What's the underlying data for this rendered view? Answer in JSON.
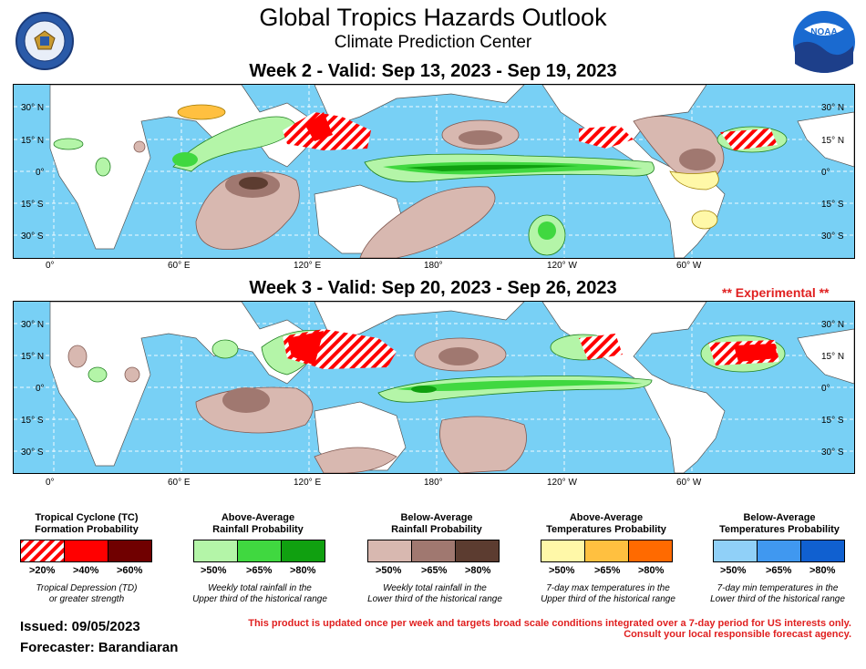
{
  "header": {
    "title": "Global Tropics Hazards Outlook",
    "subtitle": "Climate Prediction Center"
  },
  "logos": {
    "left": "department-of-commerce-seal",
    "right": "noaa-logo",
    "noaa_text": "NOAA"
  },
  "week2": {
    "title": "Week 2 - Valid: Sep 13, 2023 - Sep 19, 2023"
  },
  "week3": {
    "title": "Week 3 - Valid: Sep 20, 2023 - Sep 26, 2023",
    "tag": "** Experimental **"
  },
  "axes": {
    "lat_labels": [
      "30° N",
      "15° N",
      "0°",
      "15° S",
      "30° S"
    ],
    "lon_labels": [
      "0°",
      "60° E",
      "120° E",
      "180°",
      "120° W",
      "60° W"
    ]
  },
  "colors": {
    "ocean": "#78d0f5",
    "land": "#ffffff",
    "tc_red": "#ff0000",
    "tc_dark": "#700000",
    "rain_above": [
      "#b4f5a8",
      "#40d840",
      "#10a010"
    ],
    "rain_below": [
      "#d8b8b0",
      "#a07870",
      "#5c3c30"
    ],
    "temp_above": [
      "#fff8a8",
      "#ffc040",
      "#ff6a00"
    ],
    "temp_below": [
      "#90d0f8",
      "#4098f0",
      "#1060d0"
    ]
  },
  "legend": [
    {
      "title_line1": "Tropical Cyclone (TC)",
      "title_line2": "Formation Probability",
      "labels": [
        ">20%",
        ">40%",
        ">60%"
      ],
      "note_line1": "Tropical Depression (TD)",
      "note_line2": "or greater strength"
    },
    {
      "title_line1": "Above-Average",
      "title_line2": "Rainfall Probability",
      "labels": [
        ">50%",
        ">65%",
        ">80%"
      ],
      "note_line1": "Weekly total rainfall in the",
      "note_line2": "Upper third of the historical range"
    },
    {
      "title_line1": "Below-Average",
      "title_line2": "Rainfall Probability",
      "labels": [
        ">50%",
        ">65%",
        ">80%"
      ],
      "note_line1": "Weekly total rainfall in the",
      "note_line2": "Lower third of the historical range"
    },
    {
      "title_line1": "Above-Average",
      "title_line2": "Temperatures Probability",
      "labels": [
        ">50%",
        ">65%",
        ">80%"
      ],
      "note_line1": "7-day max temperatures in the",
      "note_line2": "Upper third of the historical range"
    },
    {
      "title_line1": "Below-Average",
      "title_line2": "Temperatures Probability",
      "labels": [
        ">50%",
        ">65%",
        ">80%"
      ],
      "note_line1": "7-day min temperatures in the",
      "note_line2": "Lower third of the historical range"
    }
  ],
  "footer": {
    "issued": "Issued: 09/05/2023",
    "forecaster": "Forecaster: Barandiaran",
    "disclaimer_line1": "This product is updated once per week and targets broad scale conditions integrated over a 7-day period for US interests only.",
    "disclaimer_line2": "Consult your local responsible forecast agency."
  }
}
